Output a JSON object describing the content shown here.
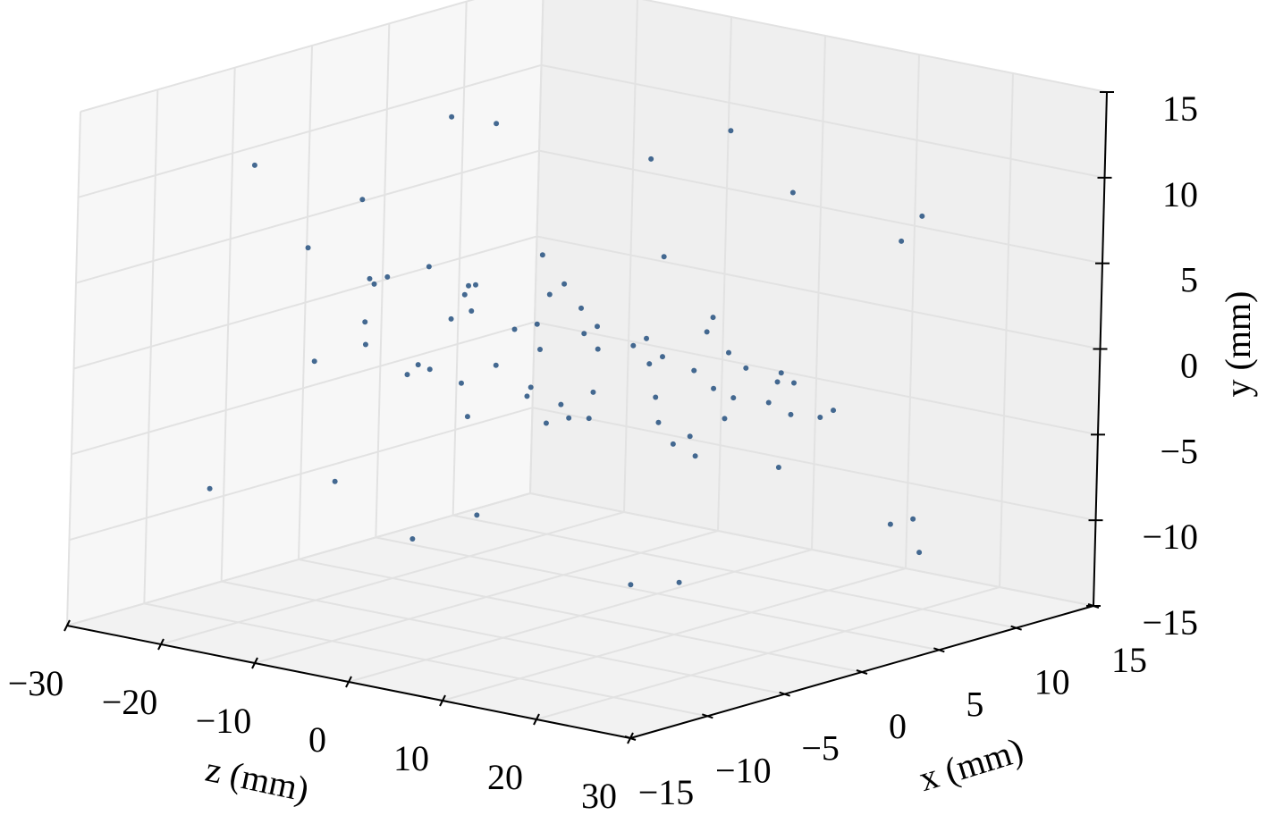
{
  "chart_data": {
    "type": "scatter3d",
    "xlabel": "x (mm)",
    "ylabel": "y (mm)",
    "zlabel": "z (mm)",
    "xlim": [
      -15,
      15
    ],
    "ylim": [
      -15,
      15
    ],
    "zlim": [
      -30,
      30
    ],
    "xticks": [
      {
        "value": -15,
        "label": "−15"
      },
      {
        "value": -10,
        "label": "−10"
      },
      {
        "value": -5,
        "label": "−5"
      },
      0,
      5,
      10,
      15
    ],
    "yticks": [
      {
        "value": -15,
        "label": "−15"
      },
      {
        "value": -10,
        "label": "−10"
      },
      {
        "value": -5,
        "label": "−5"
      },
      0,
      5,
      10,
      15
    ],
    "zticks": [
      {
        "value": -30,
        "label": "−30"
      },
      {
        "value": -20,
        "label": "−20"
      },
      {
        "value": -10,
        "label": "−10"
      },
      0,
      10,
      20,
      30
    ],
    "grid": true,
    "series": [
      {
        "color": "#24507f",
        "x": [
          2,
          -3,
          1,
          -1,
          4,
          -2,
          0,
          3,
          -4,
          2,
          -1,
          1,
          -3,
          0,
          2,
          -2,
          3,
          -1,
          1,
          -4,
          0,
          2,
          -2,
          1,
          -3,
          3,
          0,
          -1,
          2,
          -2,
          1,
          -3,
          4,
          0,
          -1,
          2,
          -2,
          3,
          -1,
          1,
          0,
          -3,
          2,
          -2,
          1,
          3,
          -1,
          0,
          2,
          -2,
          8,
          -9,
          6,
          -7,
          10,
          -8,
          9,
          -10,
          7,
          -6,
          8,
          -9,
          5,
          11,
          -11,
          7,
          -8,
          9,
          -7,
          10,
          -10,
          6,
          -9,
          8,
          -6,
          7,
          -8,
          9,
          -5,
          6
        ],
        "y": [
          1,
          -2,
          2,
          0,
          -1,
          3,
          -3,
          1,
          0,
          2,
          -2,
          1,
          -1,
          3,
          0,
          -2,
          2,
          -1,
          1,
          -3,
          0,
          2,
          -2,
          1,
          -1,
          0,
          2,
          -3,
          1,
          -1,
          0,
          2,
          -2,
          1,
          -1,
          3,
          -2,
          0,
          1,
          -1,
          2,
          -2,
          0,
          -1,
          1,
          -2,
          0,
          1,
          -1,
          0,
          9,
          -8,
          10,
          -7,
          8,
          -9,
          11,
          -6,
          9,
          -10,
          7,
          -8,
          10,
          -9,
          8,
          -7,
          9,
          -10,
          6,
          -8,
          11,
          -7,
          8,
          -9,
          10,
          -6,
          7,
          -8,
          9,
          -10
        ],
        "z": [
          -26,
          -24,
          -23,
          -22,
          -21,
          -20,
          -19,
          -18,
          -17,
          -16,
          -15,
          -14,
          -13,
          -12,
          -11,
          -10,
          -9,
          -8,
          -7,
          -6,
          -5,
          -4,
          -3,
          -2,
          -1,
          0,
          1,
          2,
          3,
          4,
          5,
          6,
          7,
          8,
          9,
          10,
          11,
          12,
          13,
          14,
          15,
          16,
          17,
          18,
          19,
          20,
          21,
          22,
          23,
          25,
          -28,
          -25,
          -20,
          -15,
          -10,
          -5,
          0,
          5,
          10,
          15,
          20,
          25,
          27,
          -22,
          -12,
          -2,
          8,
          18,
          24,
          -18,
          -8,
          2,
          12,
          22,
          -26,
          -14,
          -4,
          6,
          16,
          26
        ]
      }
    ]
  }
}
